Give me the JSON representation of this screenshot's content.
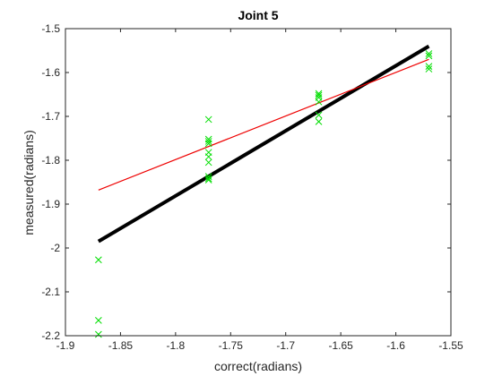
{
  "chart_data": {
    "type": "scatter",
    "title": "Joint 5",
    "xlabel": "correct(radians)",
    "ylabel": "measured(radians)",
    "xlim": [
      -1.9,
      -1.55
    ],
    "ylim": [
      -2.2,
      -1.5
    ],
    "xticks": [
      -1.9,
      -1.85,
      -1.8,
      -1.75,
      -1.7,
      -1.65,
      -1.6,
      -1.55
    ],
    "yticks": [
      -2.2,
      -2.1,
      -2.0,
      -1.9,
      -1.8,
      -1.7,
      -1.6,
      -1.5
    ],
    "xtick_labels": [
      "-1.9",
      "-1.85",
      "-1.8",
      "-1.75",
      "-1.7",
      "-1.65",
      "-1.6",
      "-1.55"
    ],
    "ytick_labels": [
      "-2.2",
      "-2.1",
      "-2",
      "-1.9",
      "-1.8",
      "-1.7",
      "-1.6",
      "-1.5"
    ],
    "grid": false,
    "series": [
      {
        "type": "scatter",
        "marker": "x",
        "color": "#00dd00",
        "x": [
          -1.87,
          -1.87,
          -1.87,
          -1.77,
          -1.77,
          -1.77,
          -1.77,
          -1.77,
          -1.77,
          -1.77,
          -1.77,
          -1.77,
          -1.77,
          -1.67,
          -1.67,
          -1.67,
          -1.67,
          -1.67,
          -1.67,
          -1.57,
          -1.57,
          -1.57,
          -1.57
        ],
        "y": [
          -2.027,
          -2.165,
          -2.197,
          -1.707,
          -1.752,
          -1.757,
          -1.762,
          -1.782,
          -1.792,
          -1.805,
          -1.837,
          -1.842,
          -1.845,
          -1.648,
          -1.652,
          -1.657,
          -1.667,
          -1.697,
          -1.712,
          -1.557,
          -1.562,
          -1.586,
          -1.592
        ]
      },
      {
        "type": "line",
        "color": "#000000",
        "x": [
          -1.87,
          -1.57
        ],
        "y": [
          -1.985,
          -1.54
        ]
      },
      {
        "type": "line",
        "color": "#ee0000",
        "x": [
          -1.87,
          -1.57
        ],
        "y": [
          -1.868,
          -1.57
        ]
      }
    ]
  }
}
